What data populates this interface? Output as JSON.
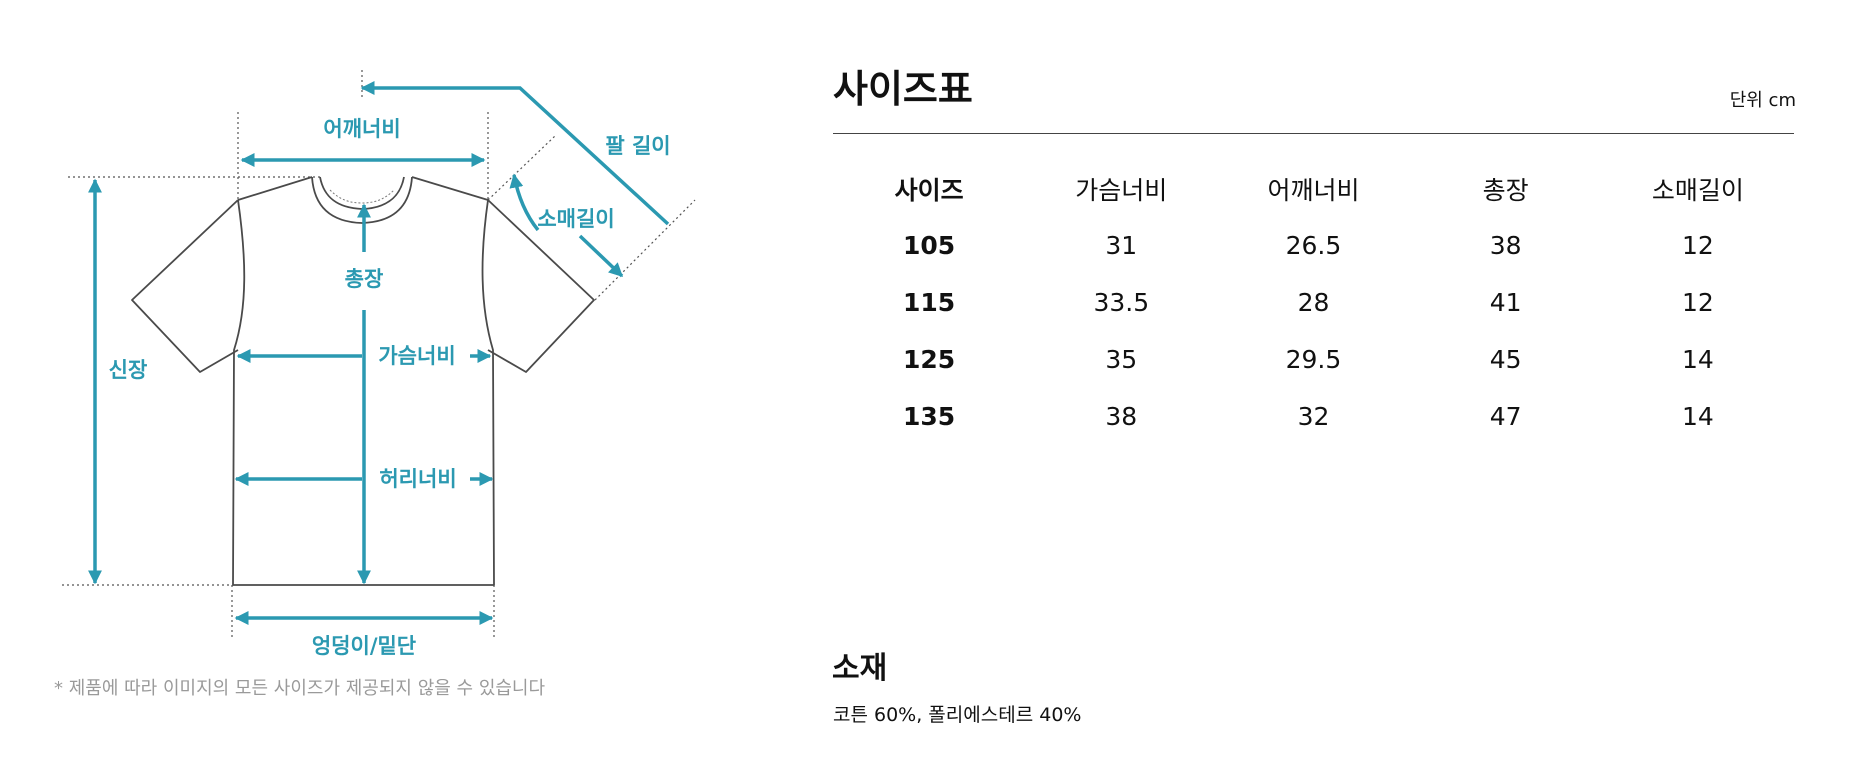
{
  "diagram": {
    "labels": {
      "arm_length": "팔 길이",
      "shoulder_width": "어깨너비",
      "sleeve_length": "소매길이",
      "total_length": "총장",
      "height": "신장",
      "chest_width": "가슴너비",
      "waist_width": "허리너비",
      "hem_width": "엉덩이/밑단"
    },
    "accent_color": "#2b99b1",
    "outline_color": "#4a4a4a",
    "guide_color": "#555555"
  },
  "note": "* 제품에 따라 이미지의 모든 사이즈가 제공되지 않을 수 있습니다",
  "size_chart": {
    "title": "사이즈표",
    "unit": "단위 cm",
    "headers": [
      "사이즈",
      "가슴너비",
      "어깨너비",
      "총장",
      "소매길이"
    ],
    "rows": [
      [
        "105",
        "31",
        "26.5",
        "38",
        "12"
      ],
      [
        "115",
        "33.5",
        "28",
        "41",
        "12"
      ],
      [
        "125",
        "35",
        "29.5",
        "45",
        "14"
      ],
      [
        "135",
        "38",
        "32",
        "47",
        "14"
      ]
    ]
  },
  "material": {
    "title": "소재",
    "composition": "코튼 60%, 폴리에스테르 40%"
  }
}
